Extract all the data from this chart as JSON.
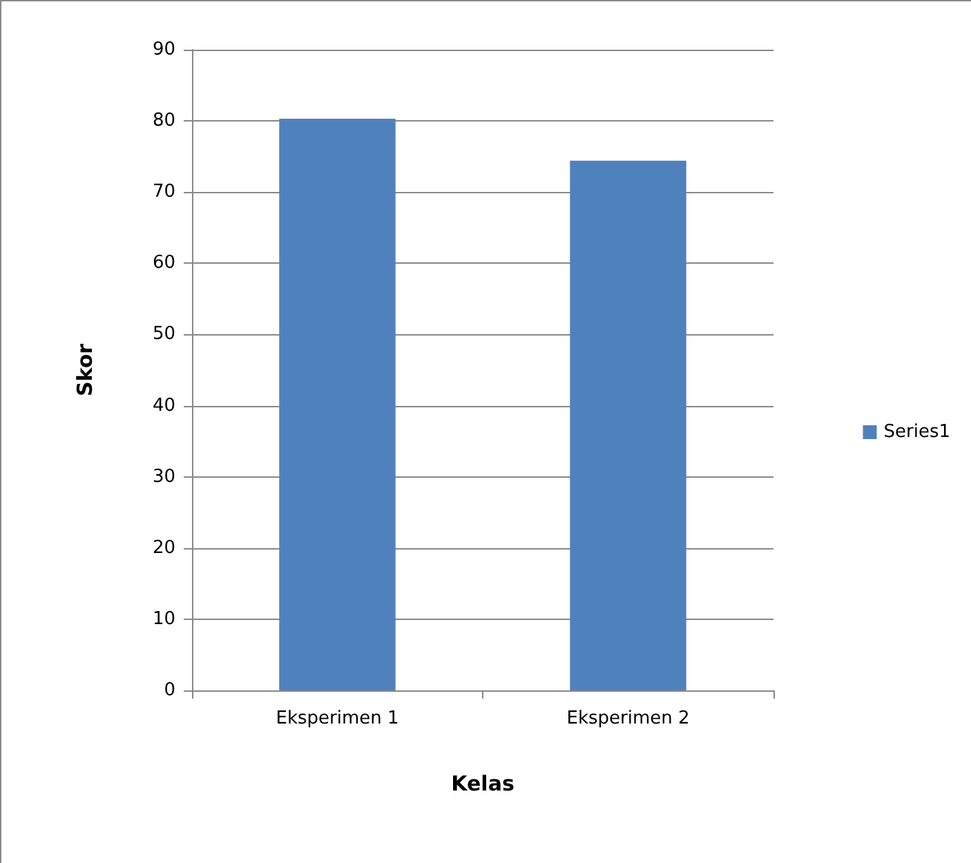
{
  "chart_data": {
    "type": "bar",
    "xlabel": "Kelas",
    "ylabel": "Skor",
    "categories": [
      "Eksperimen 1",
      "Eksperimen 2"
    ],
    "series": [
      {
        "name": "Series1",
        "color": "#4f81bd",
        "values": [
          80.3,
          74.4
        ]
      }
    ],
    "ylim": [
      0,
      90
    ],
    "yticks": [
      0,
      10,
      20,
      30,
      40,
      50,
      60,
      70,
      80,
      90
    ],
    "grid": "y",
    "legend": "right"
  }
}
